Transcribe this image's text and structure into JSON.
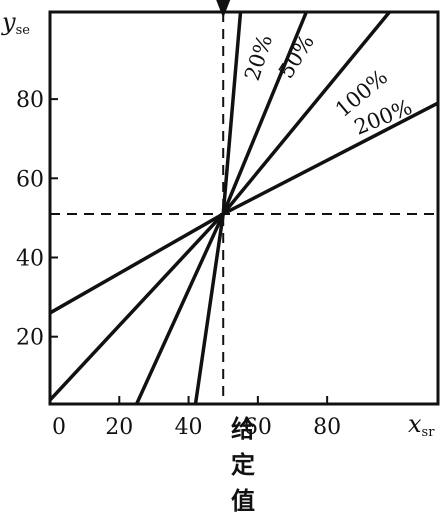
{
  "x_axis": {
    "name": "x",
    "subscript": "sr",
    "ticks": [
      "0",
      "20",
      "40",
      "60",
      "80"
    ],
    "range": [
      0,
      112
    ]
  },
  "y_axis": {
    "name": "y",
    "subscript": "se",
    "ticks": [
      "20",
      "40",
      "60",
      "80"
    ],
    "range": [
      3,
      102
    ]
  },
  "set_point": {
    "label_chars": [
      "给",
      "定",
      "值"
    ],
    "x": 50,
    "y": 51
  },
  "gain_lines": [
    {
      "label": "20%",
      "x_at_bottom": 42.0,
      "y_at_left": null,
      "x_at_top": 55.0
    },
    {
      "label": "50%",
      "x_at_bottom": 25.0,
      "y_at_left": null,
      "x_at_top": 74.0
    },
    {
      "label": "100%",
      "x_at_bottom": null,
      "y_at_left": 4.0,
      "x_at_top": 98.0
    },
    {
      "label": "200%",
      "x_at_bottom": null,
      "y_at_left": 26.0,
      "x_at_top": null,
      "y_at_right": 79.0
    }
  ],
  "colors": {
    "ink": "#111111",
    "background": "#ffffff"
  }
}
